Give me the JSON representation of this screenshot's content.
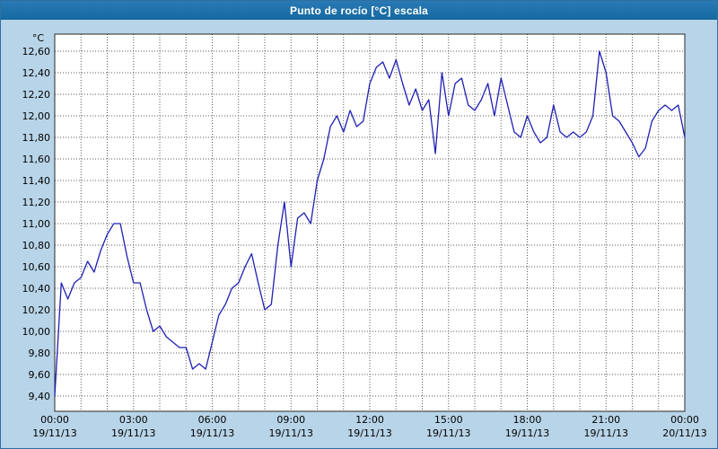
{
  "window": {
    "title": "Punto de rocío [°C] escala"
  },
  "colors": {
    "titlebar_blue": "#14699f",
    "panel_background": "#b8d4e8",
    "plot_background": "#ffffff",
    "plot_border": "#2a2a2a",
    "gridline": "#5a5a5a",
    "tick_text": "#000000",
    "series_line": "#1f1fb4"
  },
  "chart_data": {
    "type": "line",
    "title": "Punto de rocío [°C] escala",
    "series_name": "Punto de rocío",
    "unit_label": "°C",
    "xlabel": "",
    "ylabel": "°C",
    "ylim": [
      9.4,
      12.6
    ],
    "ytick_step": 0.2,
    "ytick_labels": [
      "12,60",
      "12,40",
      "12,20",
      "12,00",
      "11,80",
      "11,60",
      "11,40",
      "11,20",
      "11,00",
      "10,80",
      "10,60",
      "10,40",
      "10,20",
      "10,00",
      "9,80",
      "9,60",
      "9,40"
    ],
    "xlim_hours": [
      0,
      24
    ],
    "x_minor_grid_hours": 1,
    "xtick_hours": [
      0,
      3,
      6,
      9,
      12,
      15,
      18,
      21,
      24
    ],
    "xtick_labels": [
      "00:00",
      "03:00",
      "06:00",
      "09:00",
      "12:00",
      "15:00",
      "18:00",
      "21:00",
      "00:00"
    ],
    "xdate_labels": [
      "19/11/13",
      "19/11/13",
      "19/11/13",
      "19/11/13",
      "19/11/13",
      "19/11/13",
      "19/11/13",
      "19/11/13",
      "20/11/13"
    ],
    "grid": "dotted",
    "legend": "none",
    "line_color": "#1f1fb4",
    "points": [
      [
        0.0,
        9.4
      ],
      [
        0.25,
        10.45
      ],
      [
        0.5,
        10.3
      ],
      [
        0.75,
        10.45
      ],
      [
        1.0,
        10.5
      ],
      [
        1.25,
        10.65
      ],
      [
        1.5,
        10.55
      ],
      [
        1.75,
        10.75
      ],
      [
        2.0,
        10.9
      ],
      [
        2.25,
        11.0
      ],
      [
        2.5,
        11.0
      ],
      [
        2.75,
        10.7
      ],
      [
        3.0,
        10.45
      ],
      [
        3.25,
        10.45
      ],
      [
        3.5,
        10.2
      ],
      [
        3.75,
        10.0
      ],
      [
        4.0,
        10.05
      ],
      [
        4.25,
        9.95
      ],
      [
        4.5,
        9.9
      ],
      [
        4.75,
        9.85
      ],
      [
        5.0,
        9.85
      ],
      [
        5.25,
        9.65
      ],
      [
        5.5,
        9.7
      ],
      [
        5.75,
        9.65
      ],
      [
        6.0,
        9.9
      ],
      [
        6.25,
        10.15
      ],
      [
        6.5,
        10.25
      ],
      [
        6.75,
        10.4
      ],
      [
        7.0,
        10.45
      ],
      [
        7.25,
        10.6
      ],
      [
        7.5,
        10.72
      ],
      [
        7.75,
        10.45
      ],
      [
        8.0,
        10.2
      ],
      [
        8.25,
        10.25
      ],
      [
        8.5,
        10.8
      ],
      [
        8.75,
        11.2
      ],
      [
        9.0,
        10.6
      ],
      [
        9.25,
        11.05
      ],
      [
        9.5,
        11.1
      ],
      [
        9.75,
        11.0
      ],
      [
        10.0,
        11.4
      ],
      [
        10.25,
        11.6
      ],
      [
        10.5,
        11.9
      ],
      [
        10.75,
        12.0
      ],
      [
        11.0,
        11.85
      ],
      [
        11.25,
        12.05
      ],
      [
        11.5,
        11.9
      ],
      [
        11.75,
        11.95
      ],
      [
        12.0,
        12.3
      ],
      [
        12.25,
        12.45
      ],
      [
        12.5,
        12.5
      ],
      [
        12.75,
        12.35
      ],
      [
        13.0,
        12.52
      ],
      [
        13.25,
        12.3
      ],
      [
        13.5,
        12.1
      ],
      [
        13.75,
        12.25
      ],
      [
        14.0,
        12.05
      ],
      [
        14.25,
        12.15
      ],
      [
        14.5,
        11.65
      ],
      [
        14.75,
        12.4
      ],
      [
        15.0,
        12.0
      ],
      [
        15.25,
        12.3
      ],
      [
        15.5,
        12.35
      ],
      [
        15.75,
        12.1
      ],
      [
        16.0,
        12.05
      ],
      [
        16.25,
        12.15
      ],
      [
        16.5,
        12.3
      ],
      [
        16.75,
        12.0
      ],
      [
        17.0,
        12.35
      ],
      [
        17.25,
        12.1
      ],
      [
        17.5,
        11.85
      ],
      [
        17.75,
        11.8
      ],
      [
        18.0,
        12.0
      ],
      [
        18.25,
        11.85
      ],
      [
        18.5,
        11.75
      ],
      [
        18.75,
        11.8
      ],
      [
        19.0,
        12.1
      ],
      [
        19.25,
        11.85
      ],
      [
        19.5,
        11.8
      ],
      [
        19.75,
        11.85
      ],
      [
        20.0,
        11.8
      ],
      [
        20.25,
        11.85
      ],
      [
        20.5,
        12.0
      ],
      [
        20.75,
        12.6
      ],
      [
        21.0,
        12.4
      ],
      [
        21.25,
        12.0
      ],
      [
        21.5,
        11.95
      ],
      [
        21.75,
        11.85
      ],
      [
        22.0,
        11.75
      ],
      [
        22.25,
        11.62
      ],
      [
        22.5,
        11.7
      ],
      [
        22.75,
        11.95
      ],
      [
        23.0,
        12.05
      ],
      [
        23.25,
        12.1
      ],
      [
        23.5,
        12.05
      ],
      [
        23.75,
        12.1
      ],
      [
        24.0,
        11.8
      ]
    ]
  }
}
